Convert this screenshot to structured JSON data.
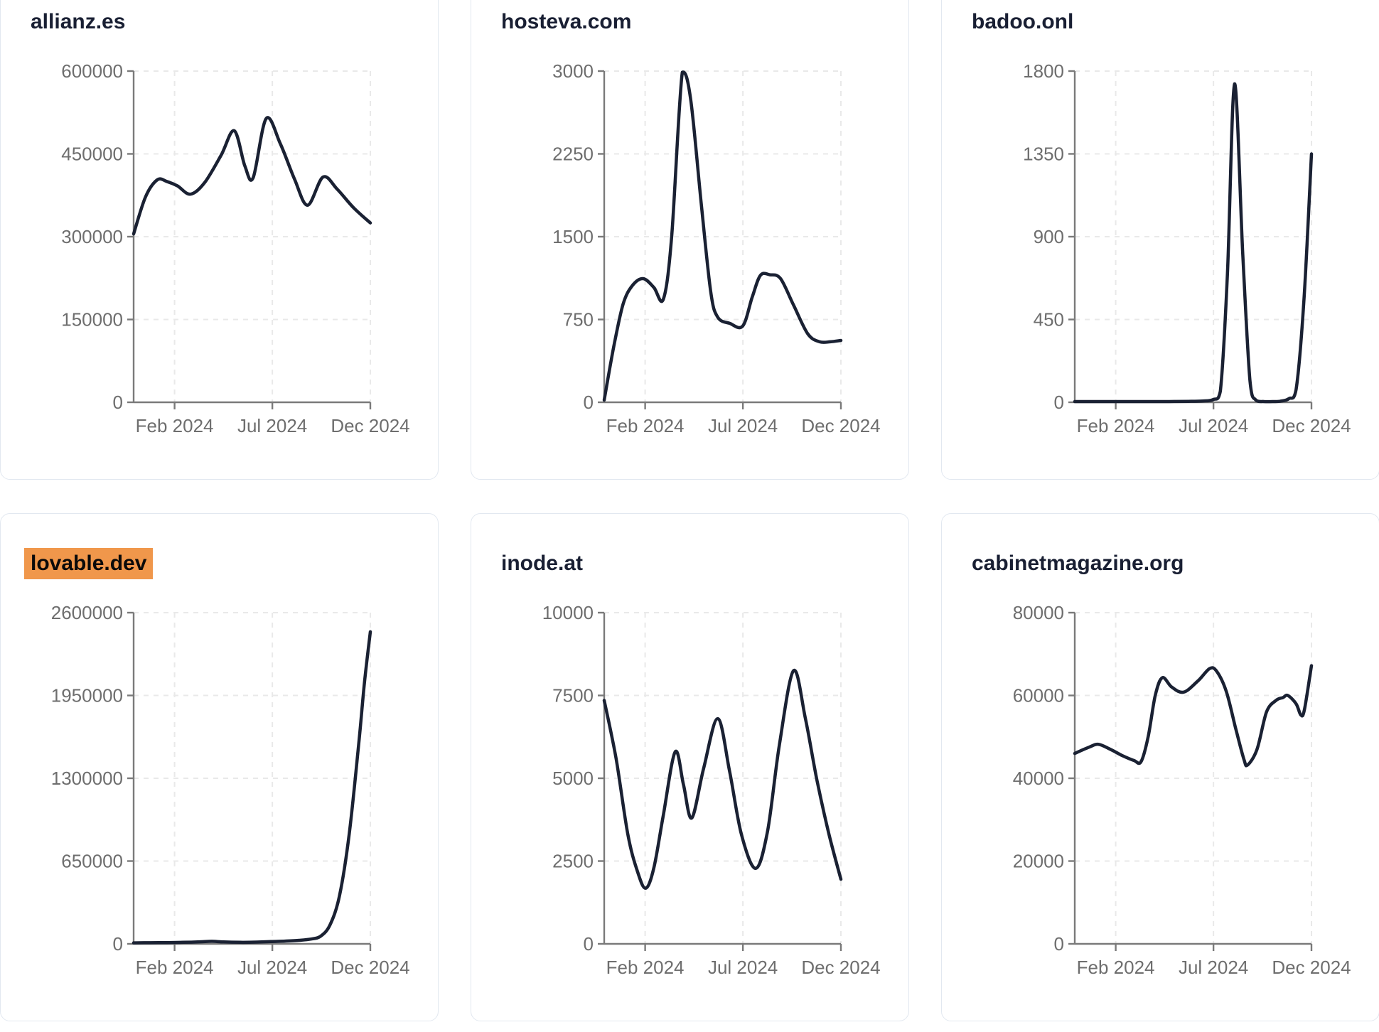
{
  "page": {
    "background": "#ffffff"
  },
  "colors": {
    "line": "#1a2133",
    "title": "#191f33",
    "tick_label": "#6e6e6e",
    "axis": "#7a7a7a",
    "grid": "#e9e9e9",
    "card_border": "#e2e8f0",
    "highlight_bg": "#f0974b",
    "highlight_text": "#0a0a0a"
  },
  "chart_data": [
    {
      "type": "line",
      "title": "allianz.es",
      "highlighted": false,
      "ylim": [
        0,
        600000
      ],
      "y_tick_labels": [
        "600000",
        "450000",
        "300000",
        "150000",
        "0"
      ],
      "x_ticks": [
        {
          "label": "Feb 2024",
          "pos": 0.173
        },
        {
          "label": "Jul 2024",
          "pos": 0.586
        },
        {
          "label": "Dec 2024",
          "pos": 1.0
        }
      ],
      "points": [
        [
          0,
          305000
        ],
        [
          0.05,
          372000
        ],
        [
          0.1,
          403000
        ],
        [
          0.14,
          400000
        ],
        [
          0.185,
          392000
        ],
        [
          0.24,
          377000
        ],
        [
          0.3,
          398000
        ],
        [
          0.37,
          448000
        ],
        [
          0.425,
          492000
        ],
        [
          0.47,
          428000
        ],
        [
          0.505,
          407000
        ],
        [
          0.56,
          514000
        ],
        [
          0.62,
          468000
        ],
        [
          0.68,
          404000
        ],
        [
          0.735,
          357000
        ],
        [
          0.8,
          408000
        ],
        [
          0.86,
          386000
        ],
        [
          0.93,
          352000
        ],
        [
          1.0,
          325000
        ]
      ]
    },
    {
      "type": "line",
      "title": "hosteva.com",
      "highlighted": false,
      "ylim": [
        0,
        3000
      ],
      "y_tick_labels": [
        "3000",
        "2250",
        "1500",
        "750",
        "0"
      ],
      "x_ticks": [
        {
          "label": "Feb 2024",
          "pos": 0.173
        },
        {
          "label": "Jul 2024",
          "pos": 0.586
        },
        {
          "label": "Dec 2024",
          "pos": 1.0
        }
      ],
      "points": [
        [
          0,
          20
        ],
        [
          0.04,
          500
        ],
        [
          0.08,
          890
        ],
        [
          0.12,
          1060
        ],
        [
          0.165,
          1120
        ],
        [
          0.21,
          1040
        ],
        [
          0.25,
          935
        ],
        [
          0.285,
          1500
        ],
        [
          0.33,
          2990
        ],
        [
          0.365,
          2750
        ],
        [
          0.41,
          1800
        ],
        [
          0.45,
          1000
        ],
        [
          0.48,
          770
        ],
        [
          0.53,
          715
        ],
        [
          0.585,
          690
        ],
        [
          0.625,
          950
        ],
        [
          0.66,
          1150
        ],
        [
          0.7,
          1155
        ],
        [
          0.745,
          1120
        ],
        [
          0.8,
          880
        ],
        [
          0.86,
          620
        ],
        [
          0.91,
          548
        ],
        [
          0.955,
          548
        ],
        [
          1.0,
          560
        ]
      ]
    },
    {
      "type": "line",
      "title": "badoo.onl",
      "highlighted": false,
      "ylim": [
        0,
        1800
      ],
      "y_tick_labels": [
        "1800",
        "1350",
        "900",
        "450",
        "0"
      ],
      "x_ticks": [
        {
          "label": "Feb 2024",
          "pos": 0.173
        },
        {
          "label": "Jul 2024",
          "pos": 0.586
        },
        {
          "label": "Dec 2024",
          "pos": 1.0
        }
      ],
      "points": [
        [
          0,
          4
        ],
        [
          0.08,
          4
        ],
        [
          0.16,
          4
        ],
        [
          0.24,
          4
        ],
        [
          0.32,
          4
        ],
        [
          0.4,
          4
        ],
        [
          0.48,
          5
        ],
        [
          0.54,
          7
        ],
        [
          0.585,
          15
        ],
        [
          0.615,
          60
        ],
        [
          0.645,
          700
        ],
        [
          0.675,
          1730
        ],
        [
          0.71,
          800
        ],
        [
          0.74,
          120
        ],
        [
          0.765,
          12
        ],
        [
          0.8,
          4
        ],
        [
          0.84,
          4
        ],
        [
          0.87,
          6
        ],
        [
          0.905,
          20
        ],
        [
          0.935,
          70
        ],
        [
          0.968,
          550
        ],
        [
          1.0,
          1350
        ]
      ]
    },
    {
      "type": "line",
      "title": "lovable.dev",
      "highlighted": true,
      "ylim": [
        0,
        2600000
      ],
      "y_tick_labels": [
        "2600000",
        "1950000",
        "1300000",
        "650000",
        "0"
      ],
      "x_ticks": [
        {
          "label": "Feb 2024",
          "pos": 0.173
        },
        {
          "label": "Jul 2024",
          "pos": 0.586
        },
        {
          "label": "Dec 2024",
          "pos": 1.0
        }
      ],
      "points": [
        [
          0,
          8000
        ],
        [
          0.07,
          9000
        ],
        [
          0.14,
          10000
        ],
        [
          0.21,
          12000
        ],
        [
          0.28,
          16000
        ],
        [
          0.33,
          20000
        ],
        [
          0.38,
          15000
        ],
        [
          0.45,
          12000
        ],
        [
          0.52,
          14000
        ],
        [
          0.58,
          18000
        ],
        [
          0.64,
          22000
        ],
        [
          0.7,
          28000
        ],
        [
          0.75,
          38000
        ],
        [
          0.79,
          60000
        ],
        [
          0.83,
          150000
        ],
        [
          0.87,
          380000
        ],
        [
          0.91,
          850000
        ],
        [
          0.95,
          1550000
        ],
        [
          0.975,
          2050000
        ],
        [
          1.0,
          2450000
        ]
      ]
    },
    {
      "type": "line",
      "title": "inode.at",
      "highlighted": false,
      "ylim": [
        0,
        10000
      ],
      "y_tick_labels": [
        "10000",
        "7500",
        "5000",
        "2500",
        "0"
      ],
      "x_ticks": [
        {
          "label": "Feb 2024",
          "pos": 0.173
        },
        {
          "label": "Jul 2024",
          "pos": 0.586
        },
        {
          "label": "Dec 2024",
          "pos": 1.0
        }
      ],
      "points": [
        [
          0,
          7350
        ],
        [
          0.05,
          5600
        ],
        [
          0.1,
          3300
        ],
        [
          0.14,
          2200
        ],
        [
          0.175,
          1680
        ],
        [
          0.21,
          2300
        ],
        [
          0.25,
          3900
        ],
        [
          0.3,
          5800
        ],
        [
          0.335,
          4800
        ],
        [
          0.37,
          3800
        ],
        [
          0.42,
          5300
        ],
        [
          0.48,
          6800
        ],
        [
          0.53,
          5200
        ],
        [
          0.58,
          3300
        ],
        [
          0.64,
          2280
        ],
        [
          0.69,
          3400
        ],
        [
          0.74,
          6000
        ],
        [
          0.8,
          8250
        ],
        [
          0.85,
          6800
        ],
        [
          0.9,
          4900
        ],
        [
          0.95,
          3300
        ],
        [
          1.0,
          1950
        ]
      ]
    },
    {
      "type": "line",
      "title": "cabinetmagazine.org",
      "highlighted": false,
      "ylim": [
        0,
        80000
      ],
      "y_tick_labels": [
        "80000",
        "60000",
        "40000",
        "20000",
        "0"
      ],
      "x_ticks": [
        {
          "label": "Feb 2024",
          "pos": 0.173
        },
        {
          "label": "Jul 2024",
          "pos": 0.586
        },
        {
          "label": "Dec 2024",
          "pos": 1.0
        }
      ],
      "points": [
        [
          0,
          46000
        ],
        [
          0.06,
          47500
        ],
        [
          0.1,
          48200
        ],
        [
          0.15,
          47000
        ],
        [
          0.2,
          45500
        ],
        [
          0.25,
          44300
        ],
        [
          0.28,
          44000
        ],
        [
          0.31,
          50000
        ],
        [
          0.34,
          60000
        ],
        [
          0.37,
          64300
        ],
        [
          0.41,
          62000
        ],
        [
          0.46,
          60800
        ],
        [
          0.52,
          63500
        ],
        [
          0.57,
          66500
        ],
        [
          0.6,
          65800
        ],
        [
          0.64,
          61000
        ],
        [
          0.68,
          52000
        ],
        [
          0.715,
          44500
        ],
        [
          0.73,
          43200
        ],
        [
          0.77,
          47000
        ],
        [
          0.81,
          56000
        ],
        [
          0.85,
          58800
        ],
        [
          0.88,
          59500
        ],
        [
          0.9,
          60000
        ],
        [
          0.935,
          58000
        ],
        [
          0.955,
          55300
        ],
        [
          0.97,
          56500
        ],
        [
          1.0,
          67200
        ]
      ]
    }
  ]
}
